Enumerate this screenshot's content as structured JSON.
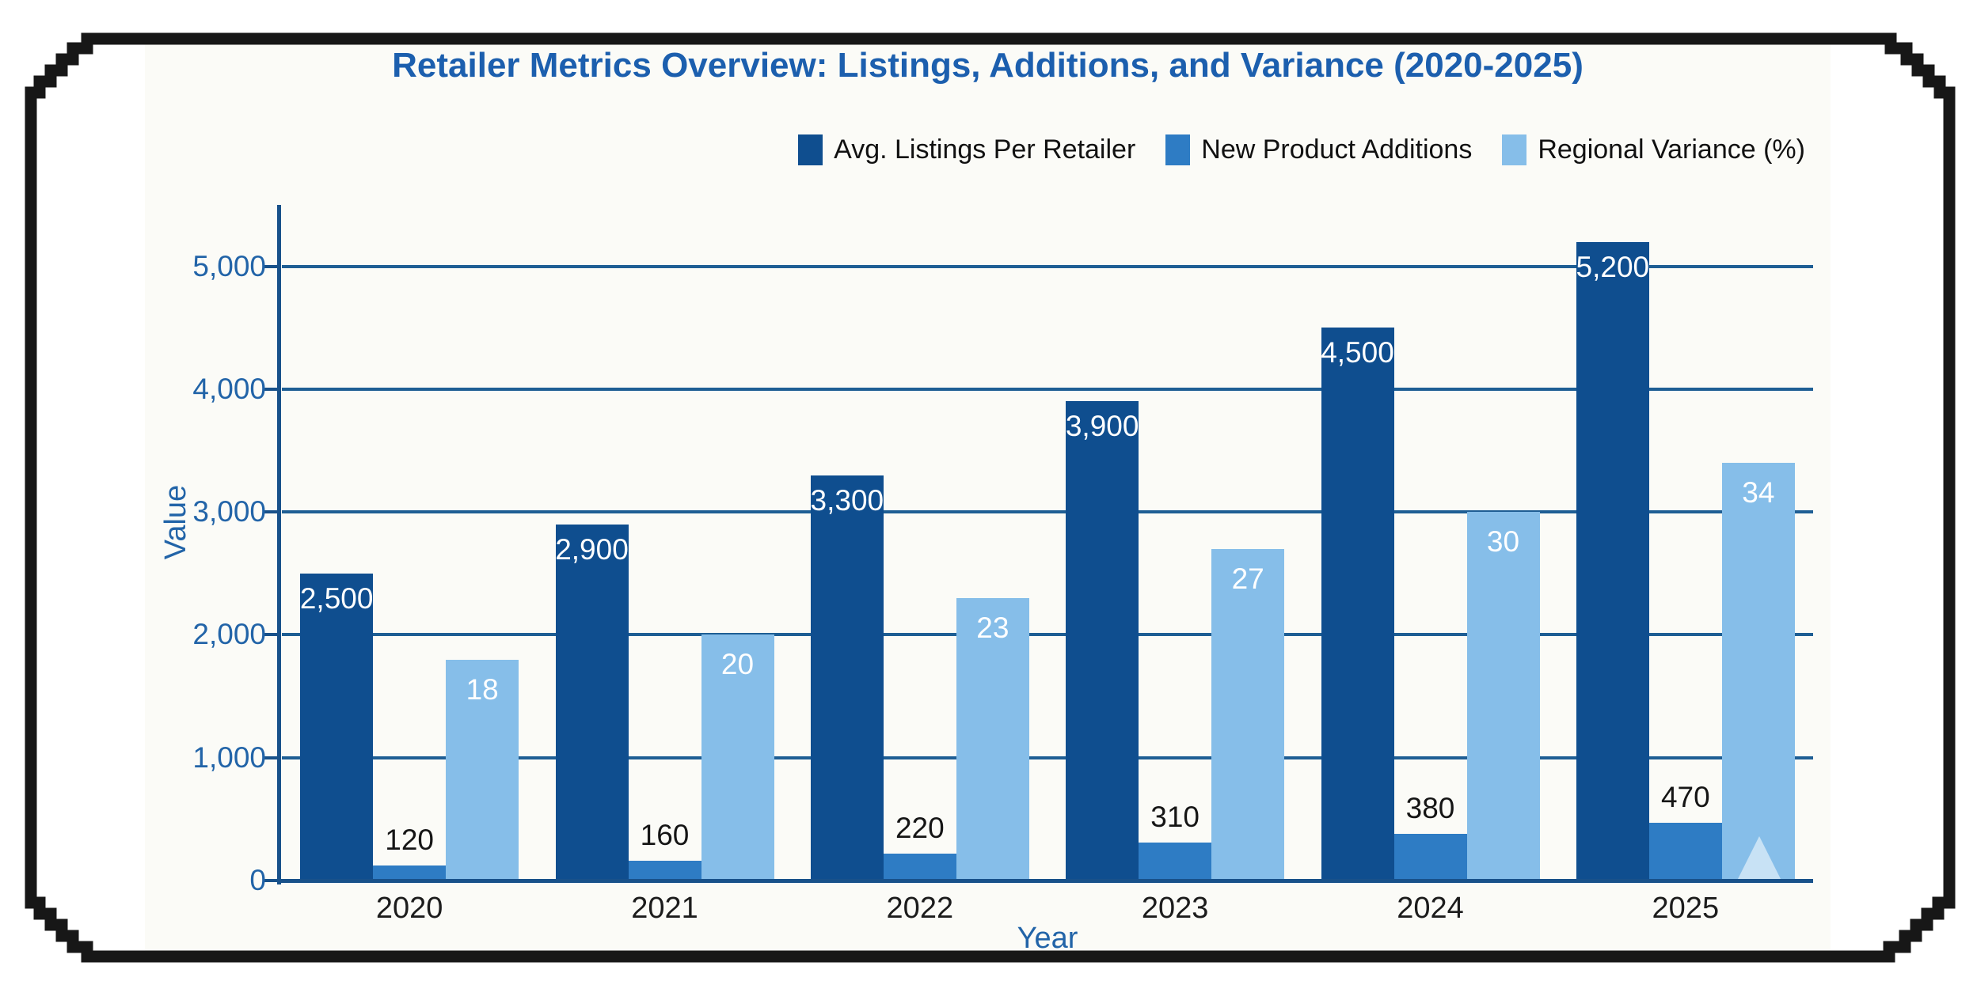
{
  "page": {
    "background": "#ffffff",
    "frame_color": "#171717",
    "chart_bg": "#fbfbf7"
  },
  "chart_data": {
    "type": "bar",
    "title": "Retailer Metrics Overview: Listings, Additions, and Variance (2020-2025)",
    "title_color": "#1c5fae",
    "xlabel": "Year",
    "ylabel": "Value",
    "axis_color": "#18518a",
    "grid_color": "#1e5e94",
    "tick_label_color": "#2264a8",
    "grid": true,
    "legend_position": "top-right",
    "ylim": [
      0,
      5500
    ],
    "y_ticks": [
      {
        "value": 0,
        "label": "0"
      },
      {
        "value": 1000,
        "label": "1,000"
      },
      {
        "value": 2000,
        "label": "2,000"
      },
      {
        "value": 3000,
        "label": "3,000"
      },
      {
        "value": 4000,
        "label": "4,000"
      },
      {
        "value": 5000,
        "label": "5,000"
      }
    ],
    "categories": [
      "2020",
      "2021",
      "2022",
      "2023",
      "2024",
      "2025"
    ],
    "series": [
      {
        "name": "Avg. Listings Per Retailer",
        "color": "#0f4e8f",
        "values": [
          2500,
          2900,
          3300,
          3900,
          4500,
          5200
        ],
        "labels": [
          "2,500",
          "2,900",
          "3,300",
          "3,900",
          "4,500",
          "5,200"
        ],
        "label_placement": "inside",
        "label_color": "#ffffff",
        "display_scale": 1
      },
      {
        "name": "New Product Additions",
        "color": "#2e7cc4",
        "values": [
          120,
          160,
          220,
          310,
          380,
          470
        ],
        "labels": [
          "120",
          "160",
          "220",
          "310",
          "380",
          "470"
        ],
        "label_placement": "above",
        "label_color": "#151515",
        "display_scale": 1
      },
      {
        "name": "Regional Variance (%)",
        "color": "#86bee9",
        "values": [
          18,
          20,
          23,
          27,
          30,
          34
        ],
        "labels": [
          "18",
          "20",
          "23",
          "27",
          "30",
          "34"
        ],
        "label_placement": "inside",
        "label_color": "#ffffff",
        "display_scale": 100
      }
    ]
  }
}
